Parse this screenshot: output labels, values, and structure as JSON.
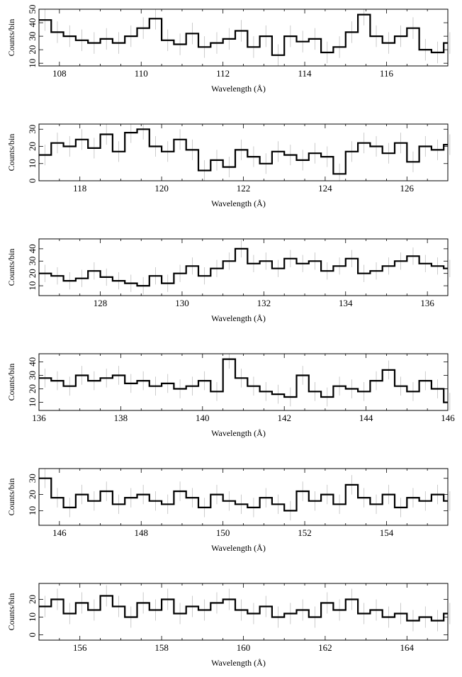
{
  "chart_data": [
    {
      "type": "line",
      "xlabel": "Wavelength (Å)",
      "ylabel": "Counts/bin",
      "xlim": [
        107.5,
        117.5
      ],
      "ylim": [
        8,
        50
      ],
      "xticks": [
        "108",
        "110",
        "112",
        "114",
        "116"
      ],
      "yticks": [
        "10",
        "20",
        "30",
        "40",
        "50"
      ],
      "x": [
        107.5,
        107.8,
        108.1,
        108.4,
        108.7,
        109.0,
        109.3,
        109.6,
        109.9,
        110.2,
        110.5,
        110.8,
        111.1,
        111.4,
        111.7,
        112.0,
        112.3,
        112.6,
        112.9,
        113.2,
        113.5,
        113.8,
        114.1,
        114.4,
        114.7,
        115.0,
        115.3,
        115.6,
        115.9,
        116.2,
        116.5,
        116.8,
        117.1,
        117.4
      ],
      "y": [
        42,
        33,
        30,
        27,
        25,
        28,
        25,
        30,
        36,
        43,
        27,
        24,
        32,
        22,
        25,
        28,
        34,
        22,
        30,
        16,
        30,
        26,
        28,
        18,
        22,
        33,
        46,
        30,
        25,
        30,
        36,
        20,
        18,
        25
      ],
      "err": 8
    },
    {
      "type": "line",
      "xlabel": "Wavelength (Å)",
      "ylabel": "Counts/bin",
      "xlim": [
        117,
        127
      ],
      "ylim": [
        0,
        33
      ],
      "xticks": [
        "118",
        "120",
        "122",
        "124",
        "126"
      ],
      "yticks": [
        "0",
        "10",
        "20",
        "30"
      ],
      "x": [
        117.0,
        117.3,
        117.6,
        117.9,
        118.2,
        118.5,
        118.8,
        119.1,
        119.4,
        119.7,
        120.0,
        120.3,
        120.6,
        120.9,
        121.2,
        121.5,
        121.8,
        122.1,
        122.4,
        122.7,
        123.0,
        123.3,
        123.6,
        123.9,
        124.2,
        124.5,
        124.8,
        125.1,
        125.4,
        125.7,
        126.0,
        126.3,
        126.6,
        126.9
      ],
      "y": [
        15,
        22,
        20,
        24,
        19,
        27,
        17,
        28,
        30,
        20,
        17,
        24,
        18,
        6,
        12,
        8,
        18,
        14,
        10,
        17,
        15,
        12,
        16,
        14,
        4,
        17,
        22,
        20,
        16,
        22,
        11,
        20,
        18,
        21
      ],
      "err": 6
    },
    {
      "type": "line",
      "xlabel": "Wavelength (Å)",
      "ylabel": "Counts/bin",
      "xlim": [
        126.5,
        136.5
      ],
      "ylim": [
        2,
        48
      ],
      "xticks": [
        "128",
        "130",
        "132",
        "134",
        "136"
      ],
      "yticks": [
        "10",
        "20",
        "30",
        "40"
      ],
      "x": [
        126.5,
        126.8,
        127.1,
        127.4,
        127.7,
        128.0,
        128.3,
        128.6,
        128.9,
        129.2,
        129.5,
        129.8,
        130.1,
        130.4,
        130.7,
        131.0,
        131.3,
        131.6,
        131.9,
        132.2,
        132.5,
        132.8,
        133.1,
        133.4,
        133.7,
        134.0,
        134.3,
        134.6,
        134.9,
        135.2,
        135.5,
        135.8,
        136.1,
        136.4
      ],
      "y": [
        20,
        18,
        14,
        16,
        22,
        17,
        14,
        12,
        10,
        18,
        12,
        20,
        26,
        18,
        24,
        30,
        40,
        28,
        30,
        24,
        32,
        28,
        30,
        22,
        26,
        32,
        20,
        22,
        26,
        30,
        34,
        28,
        26,
        24
      ],
      "err": 7
    },
    {
      "type": "line",
      "xlabel": "Wavelength (Å)",
      "ylabel": "Counts/bin",
      "xlim": [
        136,
        146
      ],
      "ylim": [
        4,
        46
      ],
      "xticks": [
        "136",
        "138",
        "140",
        "142",
        "144",
        "146"
      ],
      "yticks": [
        "10",
        "20",
        "30",
        "40"
      ],
      "x": [
        136.0,
        136.3,
        136.6,
        136.9,
        137.2,
        137.5,
        137.8,
        138.1,
        138.4,
        138.7,
        139.0,
        139.3,
        139.6,
        139.9,
        140.2,
        140.5,
        140.8,
        141.1,
        141.4,
        141.7,
        142.0,
        142.3,
        142.6,
        142.9,
        143.2,
        143.5,
        143.8,
        144.1,
        144.4,
        144.7,
        145.0,
        145.3,
        145.6,
        145.9
      ],
      "y": [
        28,
        26,
        22,
        30,
        26,
        28,
        30,
        24,
        26,
        22,
        24,
        20,
        22,
        26,
        18,
        42,
        28,
        22,
        18,
        16,
        14,
        30,
        18,
        14,
        22,
        20,
        18,
        26,
        34,
        22,
        18,
        26,
        20,
        10
      ],
      "err": 7
    },
    {
      "type": "line",
      "xlabel": "Wavelength (Å)",
      "ylabel": "Counts/bin",
      "xlim": [
        145.5,
        155.5
      ],
      "ylim": [
        1,
        36
      ],
      "xticks": [
        "146",
        "148",
        "150",
        "152",
        "154"
      ],
      "yticks": [
        "10",
        "20",
        "30"
      ],
      "x": [
        145.5,
        145.8,
        146.1,
        146.4,
        146.7,
        147.0,
        147.3,
        147.6,
        147.9,
        148.2,
        148.5,
        148.8,
        149.1,
        149.4,
        149.7,
        150.0,
        150.3,
        150.6,
        150.9,
        151.2,
        151.5,
        151.8,
        152.1,
        152.4,
        152.7,
        153.0,
        153.3,
        153.6,
        153.9,
        154.2,
        154.5,
        154.8,
        155.1,
        155.4
      ],
      "y": [
        30,
        18,
        12,
        20,
        16,
        22,
        14,
        18,
        20,
        16,
        14,
        22,
        18,
        12,
        20,
        16,
        14,
        12,
        18,
        14,
        10,
        22,
        16,
        20,
        14,
        26,
        18,
        14,
        20,
        12,
        18,
        16,
        20,
        16
      ],
      "err": 6
    },
    {
      "type": "line",
      "xlabel": "Wavelength (Å)",
      "ylabel": "Counts/bin",
      "xlim": [
        155,
        165
      ],
      "ylim": [
        -3,
        29
      ],
      "xticks": [
        "156",
        "158",
        "160",
        "162",
        "164"
      ],
      "yticks": [
        "0",
        "10",
        "20"
      ],
      "x": [
        155.0,
        155.3,
        155.6,
        155.9,
        156.2,
        156.5,
        156.8,
        157.1,
        157.4,
        157.7,
        158.0,
        158.3,
        158.6,
        158.9,
        159.2,
        159.5,
        159.8,
        160.1,
        160.4,
        160.7,
        161.0,
        161.3,
        161.6,
        161.9,
        162.2,
        162.5,
        162.8,
        163.1,
        163.4,
        163.7,
        164.0,
        164.3,
        164.6,
        164.9
      ],
      "y": [
        16,
        20,
        12,
        18,
        14,
        22,
        16,
        10,
        18,
        14,
        20,
        12,
        16,
        14,
        18,
        20,
        14,
        12,
        16,
        10,
        12,
        14,
        10,
        18,
        14,
        20,
        12,
        14,
        10,
        12,
        8,
        10,
        8,
        12
      ],
      "err": 6
    }
  ]
}
